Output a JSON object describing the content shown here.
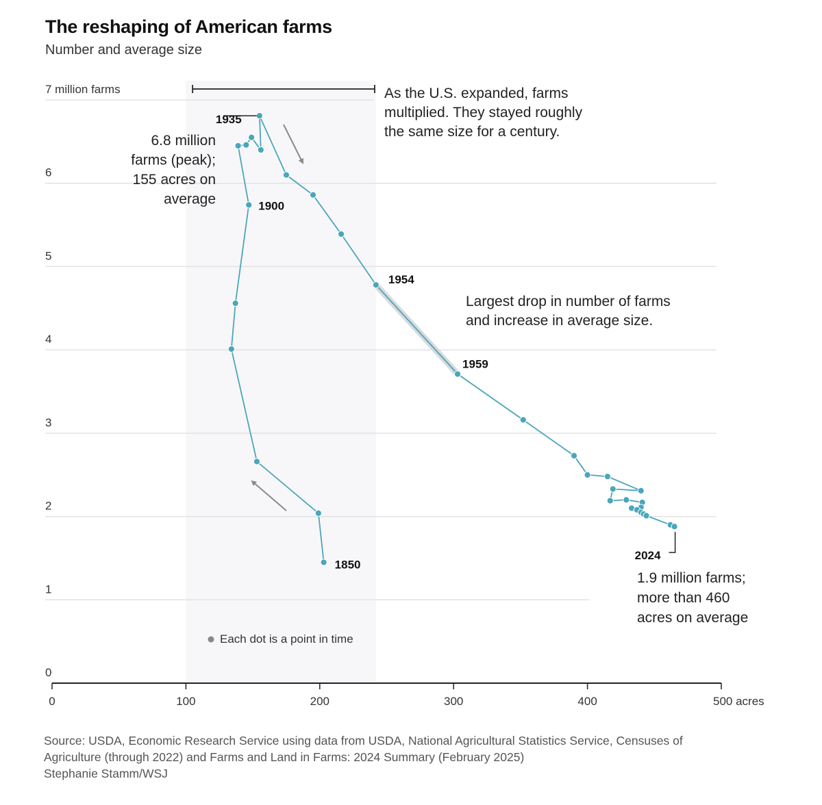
{
  "title": "The reshaping of American farms",
  "subtitle": "Number and average size",
  "source_lines": [
    "Source: USDA, Economic Research Service using data from USDA, National Agricultural Statistics Service, Censuses of",
    "Agriculture (through 2022) and Farms and Land in Farms: 2024 Summary (February 2025)",
    "Stephanie Stamm/WSJ"
  ],
  "colors": {
    "series": "#4aa6ba",
    "band": "#f7f7f9",
    "grid": "#e2e2e2",
    "arrow": "#8a8a8a",
    "highlight": "#d8dadd"
  },
  "chart_data": {
    "type": "scatter",
    "connected": true,
    "title": "The reshaping of American farms",
    "xlabel": "acres",
    "ylabel": "million farms",
    "xlim": [
      0,
      500
    ],
    "ylim": [
      0,
      7
    ],
    "x_ticks": [
      0,
      100,
      200,
      300,
      400,
      500
    ],
    "x_tick_labels": [
      "0",
      "100",
      "200",
      "300",
      "400",
      "500 acres"
    ],
    "y_ticks": [
      0,
      1,
      2,
      3,
      4,
      5,
      6,
      7
    ],
    "y_tick_labels": [
      "0",
      "1",
      "2",
      "3",
      "4",
      "5",
      "6",
      "7 million farms"
    ],
    "series": [
      {
        "name": "Farms",
        "points": [
          [
            203,
            1.45
          ],
          [
            199,
            2.04
          ],
          [
            153,
            2.66
          ],
          [
            134,
            4.01
          ],
          [
            137,
            4.56
          ],
          [
            147,
            5.74
          ],
          [
            139,
            6.45
          ],
          [
            145,
            6.46
          ],
          [
            149,
            6.55
          ],
          [
            156,
            6.4
          ],
          [
            155,
            6.81
          ],
          [
            175,
            6.1
          ],
          [
            195,
            5.86
          ],
          [
            216,
            5.39
          ],
          [
            242,
            4.78
          ],
          [
            303,
            3.71
          ],
          [
            352,
            3.16
          ],
          [
            390,
            2.73
          ],
          [
            400,
            2.5
          ],
          [
            415,
            2.48
          ],
          [
            440,
            2.31
          ],
          [
            419,
            2.33
          ],
          [
            417,
            2.19
          ],
          [
            429,
            2.2
          ],
          [
            441,
            2.17
          ],
          [
            440,
            2.11
          ],
          [
            433,
            2.1
          ],
          [
            437,
            2.08
          ],
          [
            440,
            2.05
          ],
          [
            442,
            2.03
          ],
          [
            444,
            2.01
          ],
          [
            462,
            1.9
          ],
          [
            465,
            1.88
          ]
        ]
      }
    ],
    "point_labels": [
      {
        "index": 0,
        "text": "1850"
      },
      {
        "index": 5,
        "text": "1900"
      },
      {
        "index": 10,
        "text": "1935"
      },
      {
        "index": 14,
        "text": "1954"
      },
      {
        "index": 15,
        "text": "1959"
      },
      {
        "index": 32,
        "text": "2024"
      }
    ],
    "highlight_segment": [
      14,
      15
    ],
    "shaded_band_x": [
      100,
      242
    ],
    "annotations": {
      "expansion": [
        "As the U.S. expanded, farms",
        "multiplied. They stayed roughly",
        "the same size for a century."
      ],
      "peak": [
        "6.8 million",
        "farms (peak);",
        "155 acres on",
        "average"
      ],
      "drop": [
        "Largest drop in number of farms",
        "and increase in average size."
      ],
      "latest": [
        "1.9 million farms;",
        "more than 460",
        "acres on average"
      ],
      "legend": "Each dot is a point in time"
    }
  }
}
